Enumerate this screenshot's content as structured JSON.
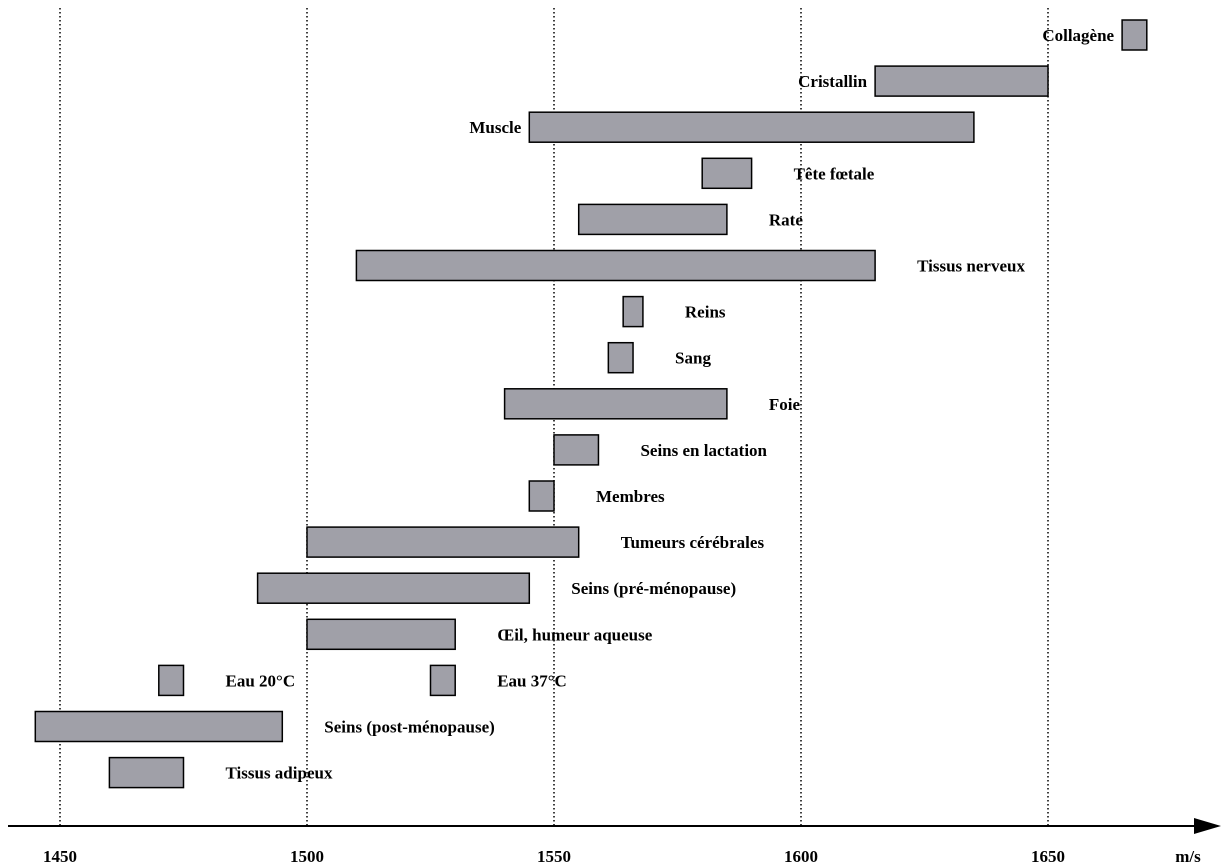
{
  "chart_data": {
    "type": "bar",
    "orientation": "horizontal-range",
    "title": "",
    "xlabel": "m/s",
    "ylabel": "",
    "xlim": [
      1445,
      1676
    ],
    "xticks": [
      1450,
      1500,
      1550,
      1600,
      1650
    ],
    "grid": "vertical dotted",
    "bar_color": "#a0a0a8",
    "bars": [
      {
        "label": "Collagène",
        "min": 1665,
        "max": 1670,
        "label_side": "left"
      },
      {
        "label": "Cristallin",
        "min": 1615,
        "max": 1650,
        "label_side": "left"
      },
      {
        "label": "Muscle",
        "min": 1545,
        "max": 1635,
        "label_side": "left"
      },
      {
        "label": "Tête fœtale",
        "min": 1580,
        "max": 1590,
        "label_side": "right"
      },
      {
        "label": "Rate",
        "min": 1555,
        "max": 1585,
        "label_side": "right"
      },
      {
        "label": "Tissus nerveux",
        "min": 1510,
        "max": 1615,
        "label_side": "right"
      },
      {
        "label": "Reins",
        "min": 1564,
        "max": 1568,
        "label_side": "right"
      },
      {
        "label": "Sang",
        "min": 1561,
        "max": 1566,
        "label_side": "right"
      },
      {
        "label": "Foie",
        "min": 1540,
        "max": 1585,
        "label_side": "right"
      },
      {
        "label": "Seins en lactation",
        "min": 1550,
        "max": 1559,
        "label_side": "right"
      },
      {
        "label": "Membres",
        "min": 1545,
        "max": 1550,
        "label_side": "right"
      },
      {
        "label": "Tumeurs cérébrales",
        "min": 1500,
        "max": 1555,
        "label_side": "right"
      },
      {
        "label": "Seins (pré-ménopause)",
        "min": 1490,
        "max": 1545,
        "label_side": "right"
      },
      {
        "label": "Œil, humeur aqueuse",
        "min": 1500,
        "max": 1530,
        "label_side": "right"
      },
      {
        "label": "Eau 20°C",
        "min": 1470,
        "max": 1475,
        "label_side": "right"
      },
      {
        "label": "Eau 37°C",
        "min": 1525,
        "max": 1530,
        "label_side": "right"
      },
      {
        "label": "Seins (post-ménopause)",
        "min": 1445,
        "max": 1495,
        "label_side": "right"
      },
      {
        "label": "Tissus adipeux",
        "min": 1460,
        "max": 1475,
        "label_side": "right"
      }
    ]
  }
}
